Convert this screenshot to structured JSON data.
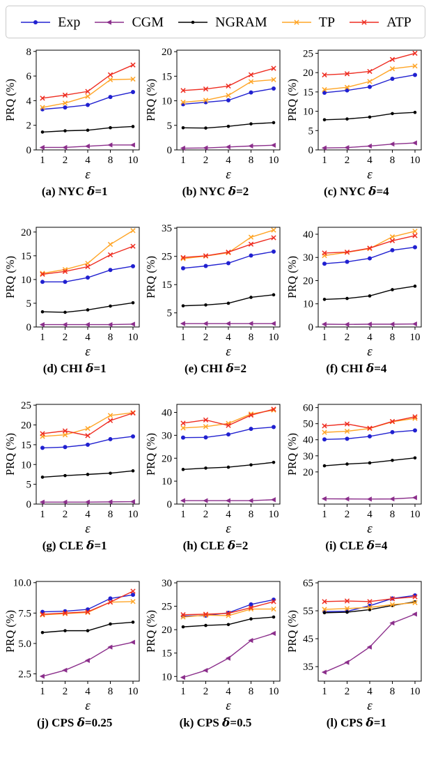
{
  "legend": {
    "items": [
      {
        "label": "Exp",
        "color": "#2020d0",
        "marker": "circle"
      },
      {
        "label": "CGM",
        "color": "#8b2e8b",
        "marker": "triangle-left"
      },
      {
        "label": "NGRAM",
        "color": "#000000",
        "marker": "dot"
      },
      {
        "label": "TP",
        "color": "#ffa526",
        "marker": "x"
      },
      {
        "label": "ATP",
        "color": "#ee2c20",
        "marker": "x"
      }
    ]
  },
  "axes": {
    "xlabel": "ε",
    "ylabel": "PRQ (%)"
  },
  "chart_data": [
    {
      "id": "a",
      "type": "line",
      "caption": "(a) NYC δ=1",
      "x": [
        1,
        2,
        4,
        8,
        10
      ],
      "ylim": [
        0,
        8.1
      ],
      "yticks": [
        {
          "v": 0,
          "label": "0"
        },
        {
          "v": 2,
          "label": "2"
        },
        {
          "v": 4,
          "label": "4"
        },
        {
          "v": 6,
          "label": "6"
        },
        {
          "v": 8,
          "label": "8"
        }
      ],
      "series": {
        "Exp": [
          3.3,
          3.45,
          3.65,
          4.3,
          4.7
        ],
        "CGM": [
          0.2,
          0.2,
          0.3,
          0.4,
          0.4
        ],
        "NGRAM": [
          1.45,
          1.55,
          1.6,
          1.8,
          1.9
        ],
        "TP": [
          3.45,
          3.8,
          4.35,
          5.7,
          5.75
        ],
        "ATP": [
          4.2,
          4.45,
          4.75,
          6.1,
          6.9
        ]
      }
    },
    {
      "id": "b",
      "type": "line",
      "caption": "(b) NYC δ=2",
      "x": [
        1,
        2,
        4,
        8,
        10
      ],
      "ylim": [
        0,
        20.3
      ],
      "yticks": [
        {
          "v": 0,
          "label": "0"
        },
        {
          "v": 5,
          "label": "5"
        },
        {
          "v": 10,
          "label": "10"
        },
        {
          "v": 15,
          "label": "15"
        },
        {
          "v": 20,
          "label": "20"
        }
      ],
      "series": {
        "Exp": [
          9.3,
          9.7,
          10.1,
          11.7,
          12.5
        ],
        "CGM": [
          0.35,
          0.4,
          0.6,
          0.8,
          0.95
        ],
        "NGRAM": [
          4.5,
          4.45,
          4.8,
          5.3,
          5.55
        ],
        "TP": [
          9.7,
          10.1,
          11.1,
          13.9,
          14.3
        ],
        "ATP": [
          12.1,
          12.4,
          13.0,
          15.3,
          16.6
        ]
      }
    },
    {
      "id": "c",
      "type": "line",
      "caption": "(c) NYC δ=4",
      "x": [
        1,
        2,
        4,
        8,
        10
      ],
      "ylim": [
        0,
        25.8
      ],
      "yticks": [
        {
          "v": 0,
          "label": "0"
        },
        {
          "v": 5,
          "label": "5"
        },
        {
          "v": 10,
          "label": "10"
        },
        {
          "v": 15,
          "label": "15"
        },
        {
          "v": 20,
          "label": "20"
        },
        {
          "v": 25,
          "label": "25"
        }
      ],
      "series": {
        "Exp": [
          14.8,
          15.4,
          16.3,
          18.4,
          19.4
        ],
        "CGM": [
          0.5,
          0.6,
          1.0,
          1.5,
          1.8
        ],
        "NGRAM": [
          7.8,
          8.0,
          8.5,
          9.4,
          9.7
        ],
        "TP": [
          15.6,
          16.2,
          17.7,
          21.0,
          21.7
        ],
        "ATP": [
          19.4,
          19.7,
          20.3,
          23.4,
          25.0
        ]
      }
    },
    {
      "id": "d",
      "type": "line",
      "caption": "(d) CHI δ=1",
      "x": [
        1,
        2,
        4,
        8,
        10
      ],
      "ylim": [
        0,
        21
      ],
      "yticks": [
        {
          "v": 0,
          "label": "0"
        },
        {
          "v": 5,
          "label": "5"
        },
        {
          "v": 10,
          "label": "10"
        },
        {
          "v": 15,
          "label": "15"
        },
        {
          "v": 20,
          "label": "20"
        }
      ],
      "series": {
        "Exp": [
          9.5,
          9.5,
          10.4,
          12.0,
          12.8
        ],
        "CGM": [
          0.5,
          0.5,
          0.5,
          0.5,
          0.6
        ],
        "NGRAM": [
          3.2,
          3.1,
          3.6,
          4.4,
          5.1
        ],
        "TP": [
          11.3,
          12.1,
          13.4,
          17.4,
          20.3
        ],
        "ATP": [
          11.1,
          11.7,
          12.7,
          15.2,
          17.0
        ]
      }
    },
    {
      "id": "e",
      "type": "line",
      "caption": "(e) CHI δ=2",
      "x": [
        1,
        2,
        4,
        8,
        10
      ],
      "ylim": [
        0,
        35.3
      ],
      "yticks": [
        {
          "v": 5,
          "label": "5"
        },
        {
          "v": 15,
          "label": "15"
        },
        {
          "v": 25,
          "label": "25"
        },
        {
          "v": 35,
          "label": "35"
        }
      ],
      "series": {
        "Exp": [
          20.8,
          21.6,
          22.6,
          25.3,
          26.7
        ],
        "CGM": [
          1.2,
          1.2,
          1.2,
          1.2,
          1.2
        ],
        "NGRAM": [
          7.5,
          7.8,
          8.4,
          10.5,
          11.4
        ],
        "TP": [
          24.2,
          25.1,
          26.3,
          31.8,
          34.3
        ],
        "ATP": [
          24.6,
          25.2,
          26.5,
          29.3,
          31.6
        ]
      }
    },
    {
      "id": "f",
      "type": "line",
      "caption": "(f) CHI δ=4",
      "x": [
        1,
        2,
        4,
        8,
        10
      ],
      "ylim": [
        0,
        43
      ],
      "yticks": [
        {
          "v": 0,
          "label": "0"
        },
        {
          "v": 10,
          "label": "10"
        },
        {
          "v": 20,
          "label": "20"
        },
        {
          "v": 30,
          "label": "30"
        },
        {
          "v": 40,
          "label": "40"
        }
      ],
      "series": {
        "Exp": [
          27.3,
          28.1,
          29.6,
          33.1,
          34.4
        ],
        "CGM": [
          1.2,
          1.1,
          1.2,
          1.2,
          1.3
        ],
        "NGRAM": [
          11.9,
          12.3,
          13.4,
          16.1,
          17.6
        ],
        "TP": [
          30.8,
          32.2,
          33.8,
          38.9,
          41.3
        ],
        "ATP": [
          31.9,
          32.3,
          34.0,
          37.2,
          39.4
        ]
      }
    },
    {
      "id": "g",
      "type": "line",
      "caption": "(g) CLE δ=1",
      "x": [
        1,
        2,
        4,
        8,
        10
      ],
      "ylim": [
        0,
        25.2
      ],
      "yticks": [
        {
          "v": 0,
          "label": "0"
        },
        {
          "v": 5,
          "label": "5"
        },
        {
          "v": 10,
          "label": "10"
        },
        {
          "v": 15,
          "label": "15"
        },
        {
          "v": 20,
          "label": "20"
        },
        {
          "v": 25,
          "label": "25"
        }
      ],
      "series": {
        "Exp": [
          14.2,
          14.4,
          15.0,
          16.4,
          17.1
        ],
        "CGM": [
          0.5,
          0.5,
          0.5,
          0.55,
          0.6
        ],
        "NGRAM": [
          6.8,
          7.2,
          7.5,
          7.8,
          8.4
        ],
        "TP": [
          17.1,
          17.5,
          19.1,
          22.4,
          23.1
        ],
        "ATP": [
          17.8,
          18.5,
          17.3,
          21.1,
          23.0
        ]
      }
    },
    {
      "id": "h",
      "type": "line",
      "caption": "(h) CLE δ=2",
      "x": [
        1,
        2,
        4,
        8,
        10
      ],
      "ylim": [
        0,
        43.5
      ],
      "yticks": [
        {
          "v": 0,
          "label": "0"
        },
        {
          "v": 10,
          "label": "10"
        },
        {
          "v": 20,
          "label": "20"
        },
        {
          "v": 30,
          "label": "30"
        },
        {
          "v": 40,
          "label": "40"
        }
      ],
      "series": {
        "Exp": [
          29.0,
          29.1,
          30.4,
          32.8,
          33.6
        ],
        "CGM": [
          1.5,
          1.5,
          1.5,
          1.5,
          1.9
        ],
        "NGRAM": [
          15.1,
          15.7,
          16.1,
          17.1,
          18.2
        ],
        "TP": [
          33.2,
          33.8,
          35.2,
          39.3,
          41.0
        ],
        "ATP": [
          35.3,
          36.7,
          34.3,
          38.8,
          41.4
        ]
      }
    },
    {
      "id": "i",
      "type": "line",
      "caption": "(i) CLE δ=4",
      "x": [
        1,
        2,
        4,
        8,
        10
      ],
      "ylim": [
        0,
        62
      ],
      "yticks": [
        {
          "v": 20,
          "label": "20"
        },
        {
          "v": 30,
          "label": "30"
        },
        {
          "v": 40,
          "label": "40"
        },
        {
          "v": 50,
          "label": "50"
        },
        {
          "v": 60,
          "label": "60"
        }
      ],
      "series": {
        "Exp": [
          40.2,
          40.6,
          42.1,
          44.7,
          45.8
        ],
        "CGM": [
          3.3,
          3.2,
          3.1,
          3.2,
          4.0
        ],
        "NGRAM": [
          23.8,
          24.9,
          25.6,
          27.2,
          28.7
        ],
        "TP": [
          44.6,
          45.3,
          47.0,
          51.2,
          53.3
        ],
        "ATP": [
          48.6,
          49.8,
          47.2,
          51.4,
          54.3
        ]
      }
    },
    {
      "id": "j",
      "type": "line",
      "caption": "(j) CPS δ=0.25",
      "x": [
        1,
        2,
        4,
        8,
        10
      ],
      "ylim": [
        1.9,
        10.1
      ],
      "yticks": [
        {
          "v": 2.5,
          "label": "2.5"
        },
        {
          "v": 5,
          "label": "5.0"
        },
        {
          "v": 7.5,
          "label": "7.5"
        },
        {
          "v": 10,
          "label": "10.0"
        }
      ],
      "series": {
        "Exp": [
          7.6,
          7.65,
          7.8,
          8.7,
          9.0
        ],
        "CGM": [
          2.3,
          2.8,
          3.6,
          4.7,
          5.1
        ],
        "NGRAM": [
          5.9,
          6.05,
          6.05,
          6.6,
          6.75
        ],
        "TP": [
          7.35,
          7.45,
          7.55,
          8.4,
          8.45
        ],
        "ATP": [
          7.4,
          7.5,
          7.6,
          8.4,
          9.3
        ]
      }
    },
    {
      "id": "k",
      "type": "line",
      "caption": "(k) CPS δ=0.5",
      "x": [
        1,
        2,
        4,
        8,
        10
      ],
      "ylim": [
        9,
        30.3
      ],
      "yticks": [
        {
          "v": 10,
          "label": "10"
        },
        {
          "v": 15,
          "label": "15"
        },
        {
          "v": 20,
          "label": "20"
        },
        {
          "v": 25,
          "label": "25"
        },
        {
          "v": 30,
          "label": "30"
        }
      ],
      "series": {
        "Exp": [
          22.9,
          23.0,
          23.6,
          25.4,
          26.4
        ],
        "CGM": [
          9.8,
          11.3,
          13.9,
          17.7,
          19.2
        ],
        "NGRAM": [
          20.6,
          20.9,
          21.1,
          22.3,
          22.7
        ],
        "TP": [
          22.7,
          23.1,
          23.0,
          24.4,
          24.4
        ],
        "ATP": [
          23.2,
          23.3,
          23.5,
          24.7,
          26.0
        ]
      }
    },
    {
      "id": "l",
      "type": "line",
      "caption": "(l) CPS δ=1",
      "x": [
        1,
        2,
        4,
        8,
        10
      ],
      "ylim": [
        29.8,
        65.5
      ],
      "yticks": [
        {
          "v": 35,
          "label": "35"
        },
        {
          "v": 45,
          "label": "45"
        },
        {
          "v": 55,
          "label": "55"
        },
        {
          "v": 65,
          "label": "65"
        }
      ],
      "series": {
        "Exp": [
          54.7,
          54.8,
          56.8,
          59.4,
          60.5
        ],
        "CGM": [
          33.0,
          36.5,
          42.0,
          50.6,
          53.8
        ],
        "NGRAM": [
          54.3,
          54.5,
          55.4,
          56.9,
          58.2
        ],
        "TP": [
          55.5,
          55.8,
          56.2,
          57.2,
          57.9
        ],
        "ATP": [
          58.3,
          58.5,
          58.3,
          59.3,
          60.0
        ]
      }
    }
  ]
}
